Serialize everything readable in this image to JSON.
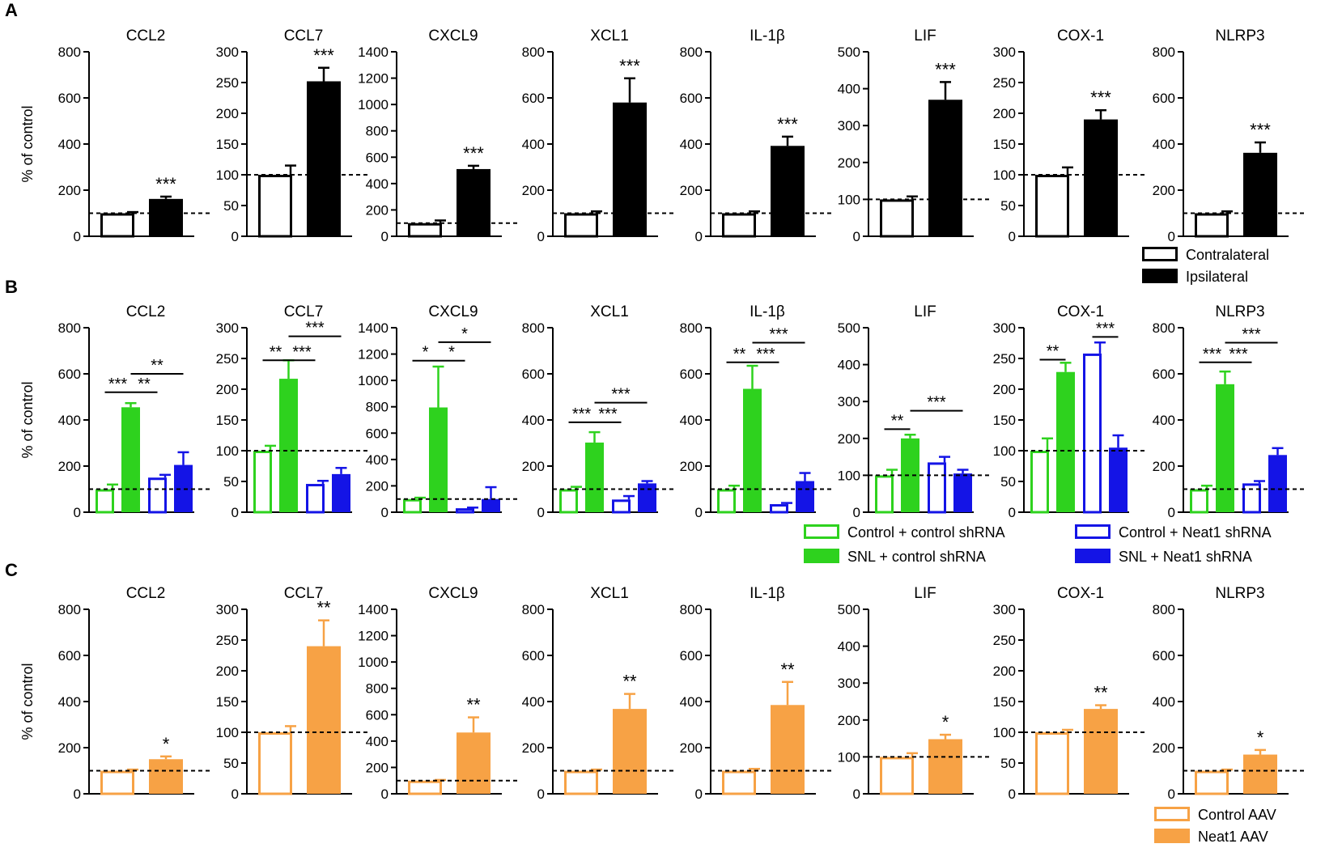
{
  "figure": {
    "panels": [
      "A",
      "B",
      "C"
    ],
    "ylabel": "% of control"
  },
  "colors": {
    "black": "#000000",
    "green": "#2ed21e",
    "blue": "#1414e6",
    "orange": "#f7a245"
  },
  "legends": {
    "A": [
      {
        "label": "Contralateral",
        "fill": "white",
        "color": "#000000"
      },
      {
        "label": "Ipsilateral",
        "fill": "solid",
        "color": "#000000"
      }
    ],
    "B": [
      {
        "label": "Control + control shRNA",
        "fill": "white",
        "color": "#2ed21e"
      },
      {
        "label": "Control + Neat1 shRNA",
        "fill": "white",
        "color": "#1414e6"
      },
      {
        "label": "SNL + control shRNA",
        "fill": "solid",
        "color": "#2ed21e"
      },
      {
        "label": "SNL + Neat1 shRNA",
        "fill": "solid",
        "color": "#1414e6"
      }
    ],
    "C": [
      {
        "label": "Control AAV",
        "fill": "white",
        "color": "#f7a245"
      },
      {
        "label": "Neat1 AAV",
        "fill": "solid",
        "color": "#f7a245"
      }
    ]
  },
  "chart_data": [
    {
      "panel": "A",
      "type": "bar",
      "groups": [
        "Contralateral",
        "Ipsilateral"
      ],
      "reference_line": 100,
      "charts": [
        {
          "title": "CCL2",
          "ylim": [
            0,
            800
          ],
          "ticks": [
            0,
            200,
            400,
            600,
            800
          ],
          "values": [
            100,
            162
          ],
          "errors": [
            5,
            10
          ],
          "sig": [
            {
              "bar": 1,
              "label": "***"
            }
          ]
        },
        {
          "title": "CCL7",
          "ylim": [
            0,
            300
          ],
          "ticks": [
            0,
            50,
            100,
            150,
            200,
            250,
            300
          ],
          "values": [
            100,
            252
          ],
          "errors": [
            15,
            22
          ],
          "sig": [
            {
              "bar": 1,
              "label": "***"
            }
          ]
        },
        {
          "title": "CXCL9",
          "ylim": [
            0,
            1400
          ],
          "ticks": [
            0,
            200,
            400,
            600,
            800,
            1000,
            1200,
            1400
          ],
          "values": [
            100,
            510
          ],
          "errors": [
            20,
            25
          ],
          "sig": [
            {
              "bar": 1,
              "label": "***"
            }
          ]
        },
        {
          "title": "XCL1",
          "ylim": [
            0,
            800
          ],
          "ticks": [
            0,
            200,
            400,
            600,
            800
          ],
          "values": [
            100,
            580
          ],
          "errors": [
            8,
            105
          ],
          "sig": [
            {
              "bar": 1,
              "label": "***"
            }
          ]
        },
        {
          "title": "IL-1β",
          "ylim": [
            0,
            800
          ],
          "ticks": [
            0,
            200,
            400,
            600,
            800
          ],
          "values": [
            100,
            392
          ],
          "errors": [
            8,
            40
          ],
          "sig": [
            {
              "bar": 1,
              "label": "***"
            }
          ]
        },
        {
          "title": "LIF",
          "ylim": [
            0,
            500
          ],
          "ticks": [
            0,
            100,
            200,
            300,
            400,
            500
          ],
          "values": [
            100,
            370
          ],
          "errors": [
            8,
            48
          ],
          "sig": [
            {
              "bar": 1,
              "label": "***"
            }
          ]
        },
        {
          "title": "COX-1",
          "ylim": [
            0,
            300
          ],
          "ticks": [
            0,
            50,
            100,
            150,
            200,
            250,
            300
          ],
          "values": [
            100,
            190
          ],
          "errors": [
            12,
            15
          ],
          "sig": [
            {
              "bar": 1,
              "label": "***"
            }
          ]
        },
        {
          "title": "NLRP3",
          "ylim": [
            0,
            800
          ],
          "ticks": [
            0,
            200,
            400,
            600,
            800
          ],
          "values": [
            100,
            362
          ],
          "errors": [
            8,
            45
          ],
          "sig": [
            {
              "bar": 1,
              "label": "***"
            }
          ]
        }
      ]
    },
    {
      "panel": "B",
      "type": "bar",
      "groups": [
        "Control + control shRNA",
        "SNL + control shRNA",
        "Control + Neat1 shRNA",
        "SNL + Neat1 shRNA"
      ],
      "reference_line": 100,
      "charts": [
        {
          "title": "CCL2",
          "ylim": [
            0,
            800
          ],
          "ticks": [
            0,
            200,
            400,
            600,
            800
          ],
          "values": [
            100,
            455,
            150,
            205
          ],
          "errors": [
            20,
            18,
            12,
            55
          ],
          "brackets": [
            {
              "from": 0,
              "to": 1,
              "label": "***",
              "y": 520
            },
            {
              "from": 1,
              "to": 2,
              "label": "**",
              "y": 520
            },
            {
              "from": 1,
              "to": 3,
              "label": "**",
              "y": 600
            }
          ]
        },
        {
          "title": "CCL7",
          "ylim": [
            0,
            300
          ],
          "ticks": [
            0,
            50,
            100,
            150,
            200,
            250,
            300
          ],
          "values": [
            100,
            217,
            46,
            62
          ],
          "errors": [
            8,
            30,
            5,
            10
          ],
          "brackets": [
            {
              "from": 0,
              "to": 1,
              "label": "**",
              "y": 247
            },
            {
              "from": 1,
              "to": 2,
              "label": "***",
              "y": 247
            },
            {
              "from": 1,
              "to": 3,
              "label": "***",
              "y": 286
            }
          ]
        },
        {
          "title": "CXCL9",
          "ylim": [
            0,
            1400
          ],
          "ticks": [
            0,
            200,
            400,
            600,
            800,
            1000,
            1200,
            1400
          ],
          "values": [
            100,
            795,
            30,
            100
          ],
          "errors": [
            10,
            310,
            5,
            90
          ],
          "brackets": [
            {
              "from": 0,
              "to": 1,
              "label": "*",
              "y": 1150
            },
            {
              "from": 1,
              "to": 2,
              "label": "*",
              "y": 1150
            },
            {
              "from": 1,
              "to": 3,
              "label": "*",
              "y": 1290
            }
          ]
        },
        {
          "title": "XCL1",
          "ylim": [
            0,
            800
          ],
          "ticks": [
            0,
            200,
            400,
            600,
            800
          ],
          "values": [
            100,
            302,
            55,
            125
          ],
          "errors": [
            10,
            45,
            15,
            10
          ],
          "brackets": [
            {
              "from": 0,
              "to": 1,
              "label": "***",
              "y": 390
            },
            {
              "from": 1,
              "to": 2,
              "label": "***",
              "y": 390
            },
            {
              "from": 1,
              "to": 3,
              "label": "***",
              "y": 475
            }
          ]
        },
        {
          "title": "IL-1β",
          "ylim": [
            0,
            800
          ],
          "ticks": [
            0,
            200,
            400,
            600,
            800
          ],
          "values": [
            100,
            535,
            35,
            135
          ],
          "errors": [
            15,
            100,
            5,
            35
          ],
          "brackets": [
            {
              "from": 0,
              "to": 1,
              "label": "**",
              "y": 650
            },
            {
              "from": 1,
              "to": 2,
              "label": "***",
              "y": 650
            },
            {
              "from": 1,
              "to": 3,
              "label": "***",
              "y": 735
            }
          ]
        },
        {
          "title": "LIF",
          "ylim": [
            0,
            500
          ],
          "ticks": [
            0,
            100,
            200,
            300,
            400,
            500
          ],
          "values": [
            100,
            200,
            135,
            105
          ],
          "errors": [
            15,
            10,
            15,
            10
          ],
          "brackets": [
            {
              "from": 0,
              "to": 1,
              "label": "**",
              "y": 225
            },
            {
              "from": 1,
              "to": 3,
              "label": "***",
              "y": 275
            }
          ]
        },
        {
          "title": "COX-1",
          "ylim": [
            0,
            300
          ],
          "ticks": [
            0,
            50,
            100,
            150,
            200,
            250,
            300
          ],
          "values": [
            100,
            228,
            258,
            105
          ],
          "errors": [
            20,
            15,
            18,
            20
          ],
          "brackets": [
            {
              "from": 0,
              "to": 1,
              "label": "**",
              "y": 248
            },
            {
              "from": 2,
              "to": 3,
              "label": "***",
              "y": 285
            }
          ]
        },
        {
          "title": "NLRP3",
          "ylim": [
            0,
            800
          ],
          "ticks": [
            0,
            200,
            400,
            600,
            800
          ],
          "values": [
            100,
            555,
            125,
            248
          ],
          "errors": [
            15,
            55,
            10,
            30
          ],
          "brackets": [
            {
              "from": 0,
              "to": 1,
              "label": "***",
              "y": 650
            },
            {
              "from": 1,
              "to": 2,
              "label": "***",
              "y": 650
            },
            {
              "from": 1,
              "to": 3,
              "label": "***",
              "y": 735
            }
          ]
        }
      ]
    },
    {
      "panel": "C",
      "type": "bar",
      "groups": [
        "Control AAV",
        "Neat1 AAV"
      ],
      "reference_line": 100,
      "charts": [
        {
          "title": "CCL2",
          "ylim": [
            0,
            800
          ],
          "ticks": [
            0,
            200,
            400,
            600,
            800
          ],
          "values": [
            100,
            150
          ],
          "errors": [
            5,
            12
          ],
          "sig": [
            {
              "bar": 1,
              "label": "*"
            }
          ]
        },
        {
          "title": "CCL7",
          "ylim": [
            0,
            300
          ],
          "ticks": [
            0,
            50,
            100,
            150,
            200,
            250,
            300
          ],
          "values": [
            100,
            240
          ],
          "errors": [
            10,
            42
          ],
          "sig": [
            {
              "bar": 1,
              "label": "**"
            }
          ]
        },
        {
          "title": "CXCL9",
          "ylim": [
            0,
            1400
          ],
          "ticks": [
            0,
            200,
            400,
            600,
            800,
            1000,
            1200,
            1400
          ],
          "values": [
            100,
            465
          ],
          "errors": [
            5,
            115
          ],
          "sig": [
            {
              "bar": 1,
              "label": "**"
            }
          ]
        },
        {
          "title": "XCL1",
          "ylim": [
            0,
            800
          ],
          "ticks": [
            0,
            200,
            400,
            600,
            800
          ],
          "values": [
            100,
            368
          ],
          "errors": [
            5,
            65
          ],
          "sig": [
            {
              "bar": 1,
              "label": "**"
            }
          ]
        },
        {
          "title": "IL-1β",
          "ylim": [
            0,
            800
          ],
          "ticks": [
            0,
            200,
            400,
            600,
            800
          ],
          "values": [
            100,
            385
          ],
          "errors": [
            8,
            100
          ],
          "sig": [
            {
              "bar": 1,
              "label": "**"
            }
          ]
        },
        {
          "title": "LIF",
          "ylim": [
            0,
            500
          ],
          "ticks": [
            0,
            100,
            200,
            300,
            400,
            500
          ],
          "values": [
            100,
            148
          ],
          "errors": [
            10,
            12
          ],
          "sig": [
            {
              "bar": 1,
              "label": "*"
            }
          ]
        },
        {
          "title": "COX-1",
          "ylim": [
            0,
            300
          ],
          "ticks": [
            0,
            50,
            100,
            150,
            200,
            250,
            300
          ],
          "values": [
            100,
            138
          ],
          "errors": [
            4,
            6
          ],
          "sig": [
            {
              "bar": 1,
              "label": "**"
            }
          ]
        },
        {
          "title": "NLRP3",
          "ylim": [
            0,
            800
          ],
          "ticks": [
            0,
            200,
            400,
            600,
            800
          ],
          "values": [
            100,
            170
          ],
          "errors": [
            5,
            20
          ],
          "sig": [
            {
              "bar": 1,
              "label": "*"
            }
          ]
        }
      ]
    }
  ]
}
